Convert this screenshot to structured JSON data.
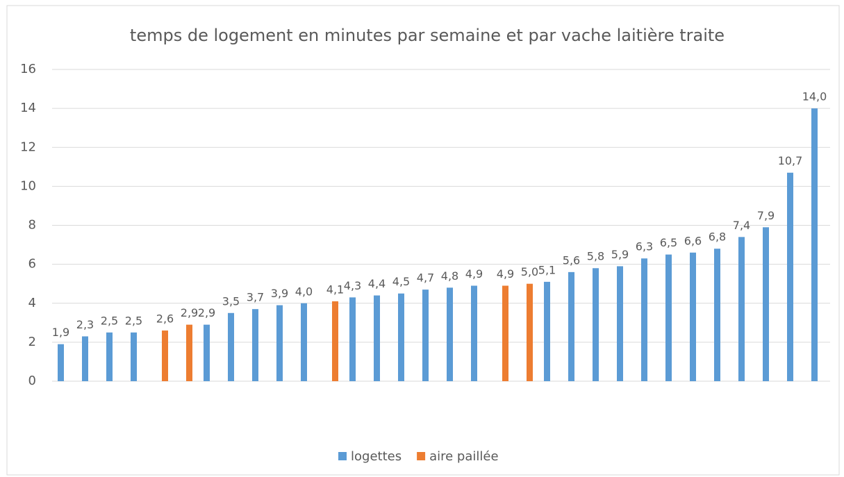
{
  "chart_data": {
    "type": "bar",
    "title": "temps de logement en minutes par semaine et par vache laitière traite",
    "categories": [
      null,
      null,
      null,
      null,
      null,
      null,
      null,
      null,
      null,
      null,
      null,
      null,
      null,
      null,
      null,
      null,
      null,
      null,
      null,
      null,
      null,
      null,
      null,
      null,
      null,
      null,
      null,
      null,
      null,
      null,
      null,
      null
    ],
    "series": [
      {
        "name": "logettes",
        "color": "#5b9bd5",
        "values": [
          1.9,
          2.3,
          2.5,
          2.5,
          null,
          null,
          2.9,
          3.5,
          3.7,
          3.9,
          4.0,
          null,
          4.3,
          4.4,
          4.5,
          4.7,
          4.8,
          4.9,
          null,
          null,
          5.1,
          5.6,
          5.8,
          5.9,
          6.3,
          6.5,
          6.6,
          6.8,
          7.4,
          7.9,
          10.7,
          14.0
        ],
        "value_labels": [
          "1,9",
          "2,3",
          "2,5",
          "2,5",
          null,
          null,
          "2,9",
          "3,5",
          "3,7",
          "3,9",
          "4,0",
          null,
          "4,3",
          "4,4",
          "4,5",
          "4,7",
          "4,8",
          "4,9",
          null,
          null,
          "5,1",
          "5,6",
          "5,8",
          "5,9",
          "6,3",
          "6,5",
          "6,6",
          "6,8",
          "7,4",
          "7,9",
          "10,7",
          "14,0"
        ]
      },
      {
        "name": "aire paillée",
        "color": "#ed7d31",
        "values": [
          null,
          null,
          null,
          null,
          2.6,
          2.9,
          null,
          null,
          null,
          null,
          null,
          4.1,
          null,
          null,
          null,
          null,
          null,
          null,
          4.9,
          5.0,
          null,
          null,
          null,
          null,
          null,
          null,
          null,
          null,
          null,
          null,
          null,
          null
        ],
        "value_labels": [
          null,
          null,
          null,
          null,
          "2,6",
          "2,9",
          null,
          null,
          null,
          null,
          null,
          "4,1",
          null,
          null,
          null,
          null,
          null,
          null,
          "4,9",
          "5,0",
          null,
          null,
          null,
          null,
          null,
          null,
          null,
          null,
          null,
          null,
          null,
          null
        ]
      }
    ],
    "ylim": [
      0,
      16
    ],
    "yticks": [
      0,
      2,
      4,
      6,
      8,
      10,
      12,
      14,
      16
    ],
    "grid": true,
    "legend": "bottom"
  }
}
